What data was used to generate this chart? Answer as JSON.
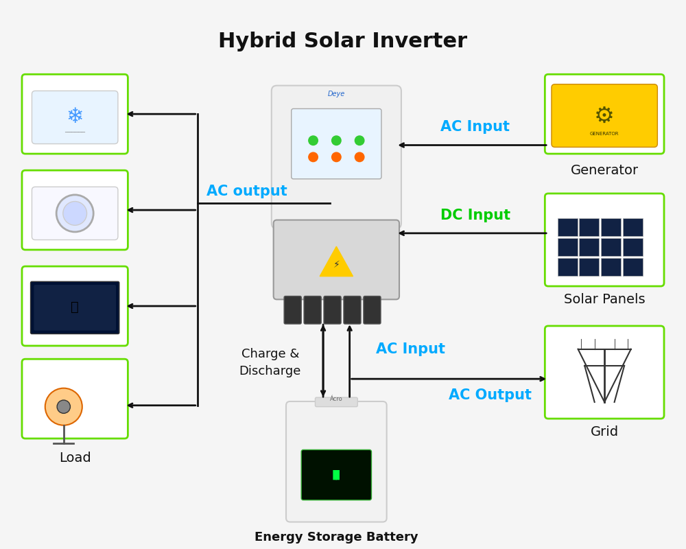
{
  "title": "Hybrid Solar Inverter",
  "title_fontsize": 22,
  "title_fontweight": "bold",
  "bg_color": "#f5f5f5",
  "box_border_color": "#66dd00",
  "box_bg_color": "#ffffff",
  "arrow_color": "#111111",
  "ac_input_color": "#00aaff",
  "dc_input_color": "#00cc00",
  "ac_output_color": "#00aaff",
  "ac_output_label_color": "#00aaff",
  "charge_discharge_color": "#111111",
  "labels": {
    "load": "Load",
    "generator": "Generator",
    "solar": "Solar Panels",
    "grid": "Grid",
    "battery": "Energy Storage Battery",
    "ac_input_top": "AC Input",
    "dc_input": "DC Input",
    "ac_input_bottom": "AC Input",
    "ac_output_label": "AC Output",
    "ac_output_arrow": "AC output",
    "charge_discharge": "Charge &\nDischarge"
  },
  "label_fontsize": 14,
  "connection_fontsize": 15,
  "figsize": [
    10,
    8
  ],
  "dpi": 100
}
